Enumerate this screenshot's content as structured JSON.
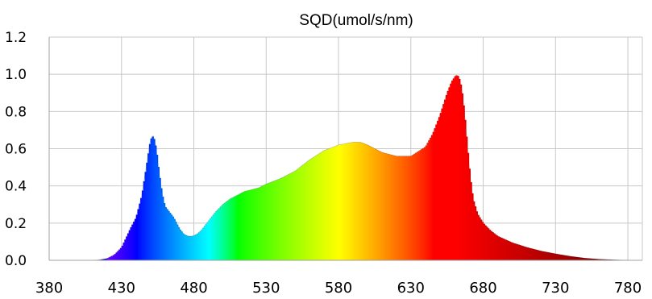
{
  "chart_data": {
    "type": "area",
    "title": "SQD(umol/s/nm)",
    "xlabel": "",
    "ylabel": "",
    "xlim": [
      380,
      790
    ],
    "ylim": [
      0,
      1.2
    ],
    "x_ticks": [
      380,
      430,
      480,
      530,
      580,
      630,
      680,
      730,
      780
    ],
    "y_ticks": [
      "0.0",
      "0.2",
      "0.4",
      "0.6",
      "0.8",
      "1.0",
      "1.2"
    ],
    "grid": true,
    "fill": "spectral colour gradient by wavelength",
    "x": [
      380,
      390,
      400,
      410,
      415,
      420,
      425,
      430,
      433,
      436,
      440,
      444,
      448,
      450,
      452,
      454,
      456,
      458,
      460,
      463,
      466,
      470,
      473,
      476,
      479,
      482,
      485,
      490,
      495,
      500,
      505,
      510,
      515,
      520,
      525,
      530,
      540,
      550,
      560,
      570,
      580,
      590,
      595,
      600,
      605,
      610,
      620,
      630,
      640,
      645,
      650,
      655,
      658,
      661,
      663,
      665,
      667,
      669,
      671,
      673,
      676,
      680,
      685,
      690,
      700,
      710,
      720,
      730,
      740,
      750,
      760,
      770,
      780,
      790
    ],
    "values": [
      0,
      0,
      0,
      0,
      0.003,
      0.01,
      0.03,
      0.07,
      0.12,
      0.17,
      0.23,
      0.35,
      0.55,
      0.65,
      0.67,
      0.6,
      0.47,
      0.36,
      0.29,
      0.26,
      0.23,
      0.17,
      0.14,
      0.13,
      0.13,
      0.14,
      0.16,
      0.21,
      0.26,
      0.3,
      0.33,
      0.35,
      0.37,
      0.38,
      0.39,
      0.41,
      0.44,
      0.48,
      0.54,
      0.59,
      0.62,
      0.635,
      0.635,
      0.62,
      0.6,
      0.58,
      0.56,
      0.56,
      0.61,
      0.68,
      0.78,
      0.9,
      0.96,
      0.995,
      0.99,
      0.93,
      0.8,
      0.62,
      0.45,
      0.33,
      0.25,
      0.2,
      0.16,
      0.13,
      0.095,
      0.07,
      0.05,
      0.035,
      0.022,
      0.012,
      0.006,
      0.003,
      0.001,
      0.0
    ]
  }
}
